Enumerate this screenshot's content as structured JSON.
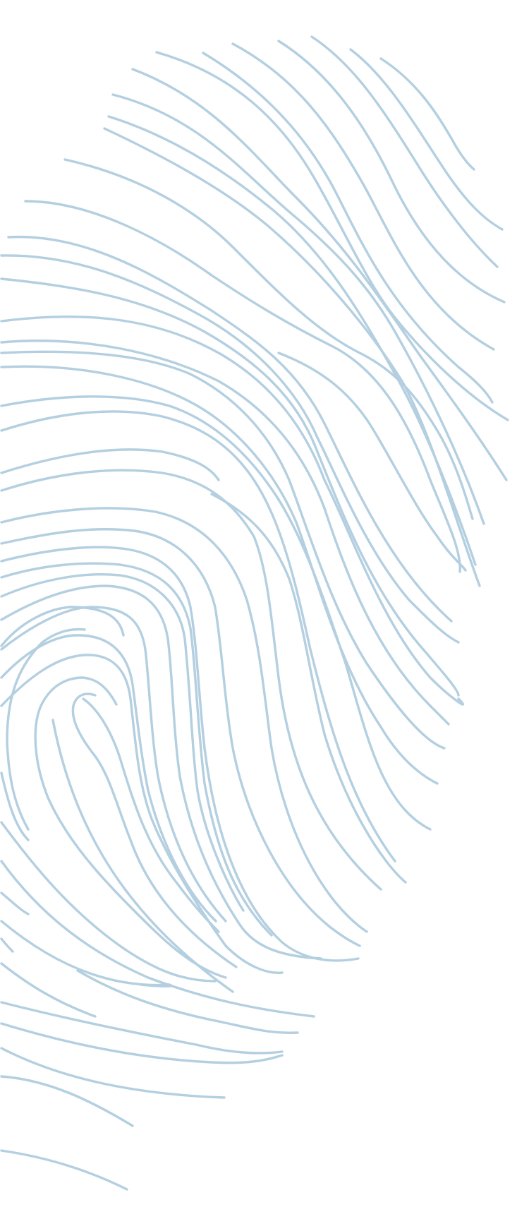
{
  "background_color": "#ffffff",
  "artwork": {
    "subject": "fingerprint-line-art",
    "line_color": "#b3cfe0"
  }
}
